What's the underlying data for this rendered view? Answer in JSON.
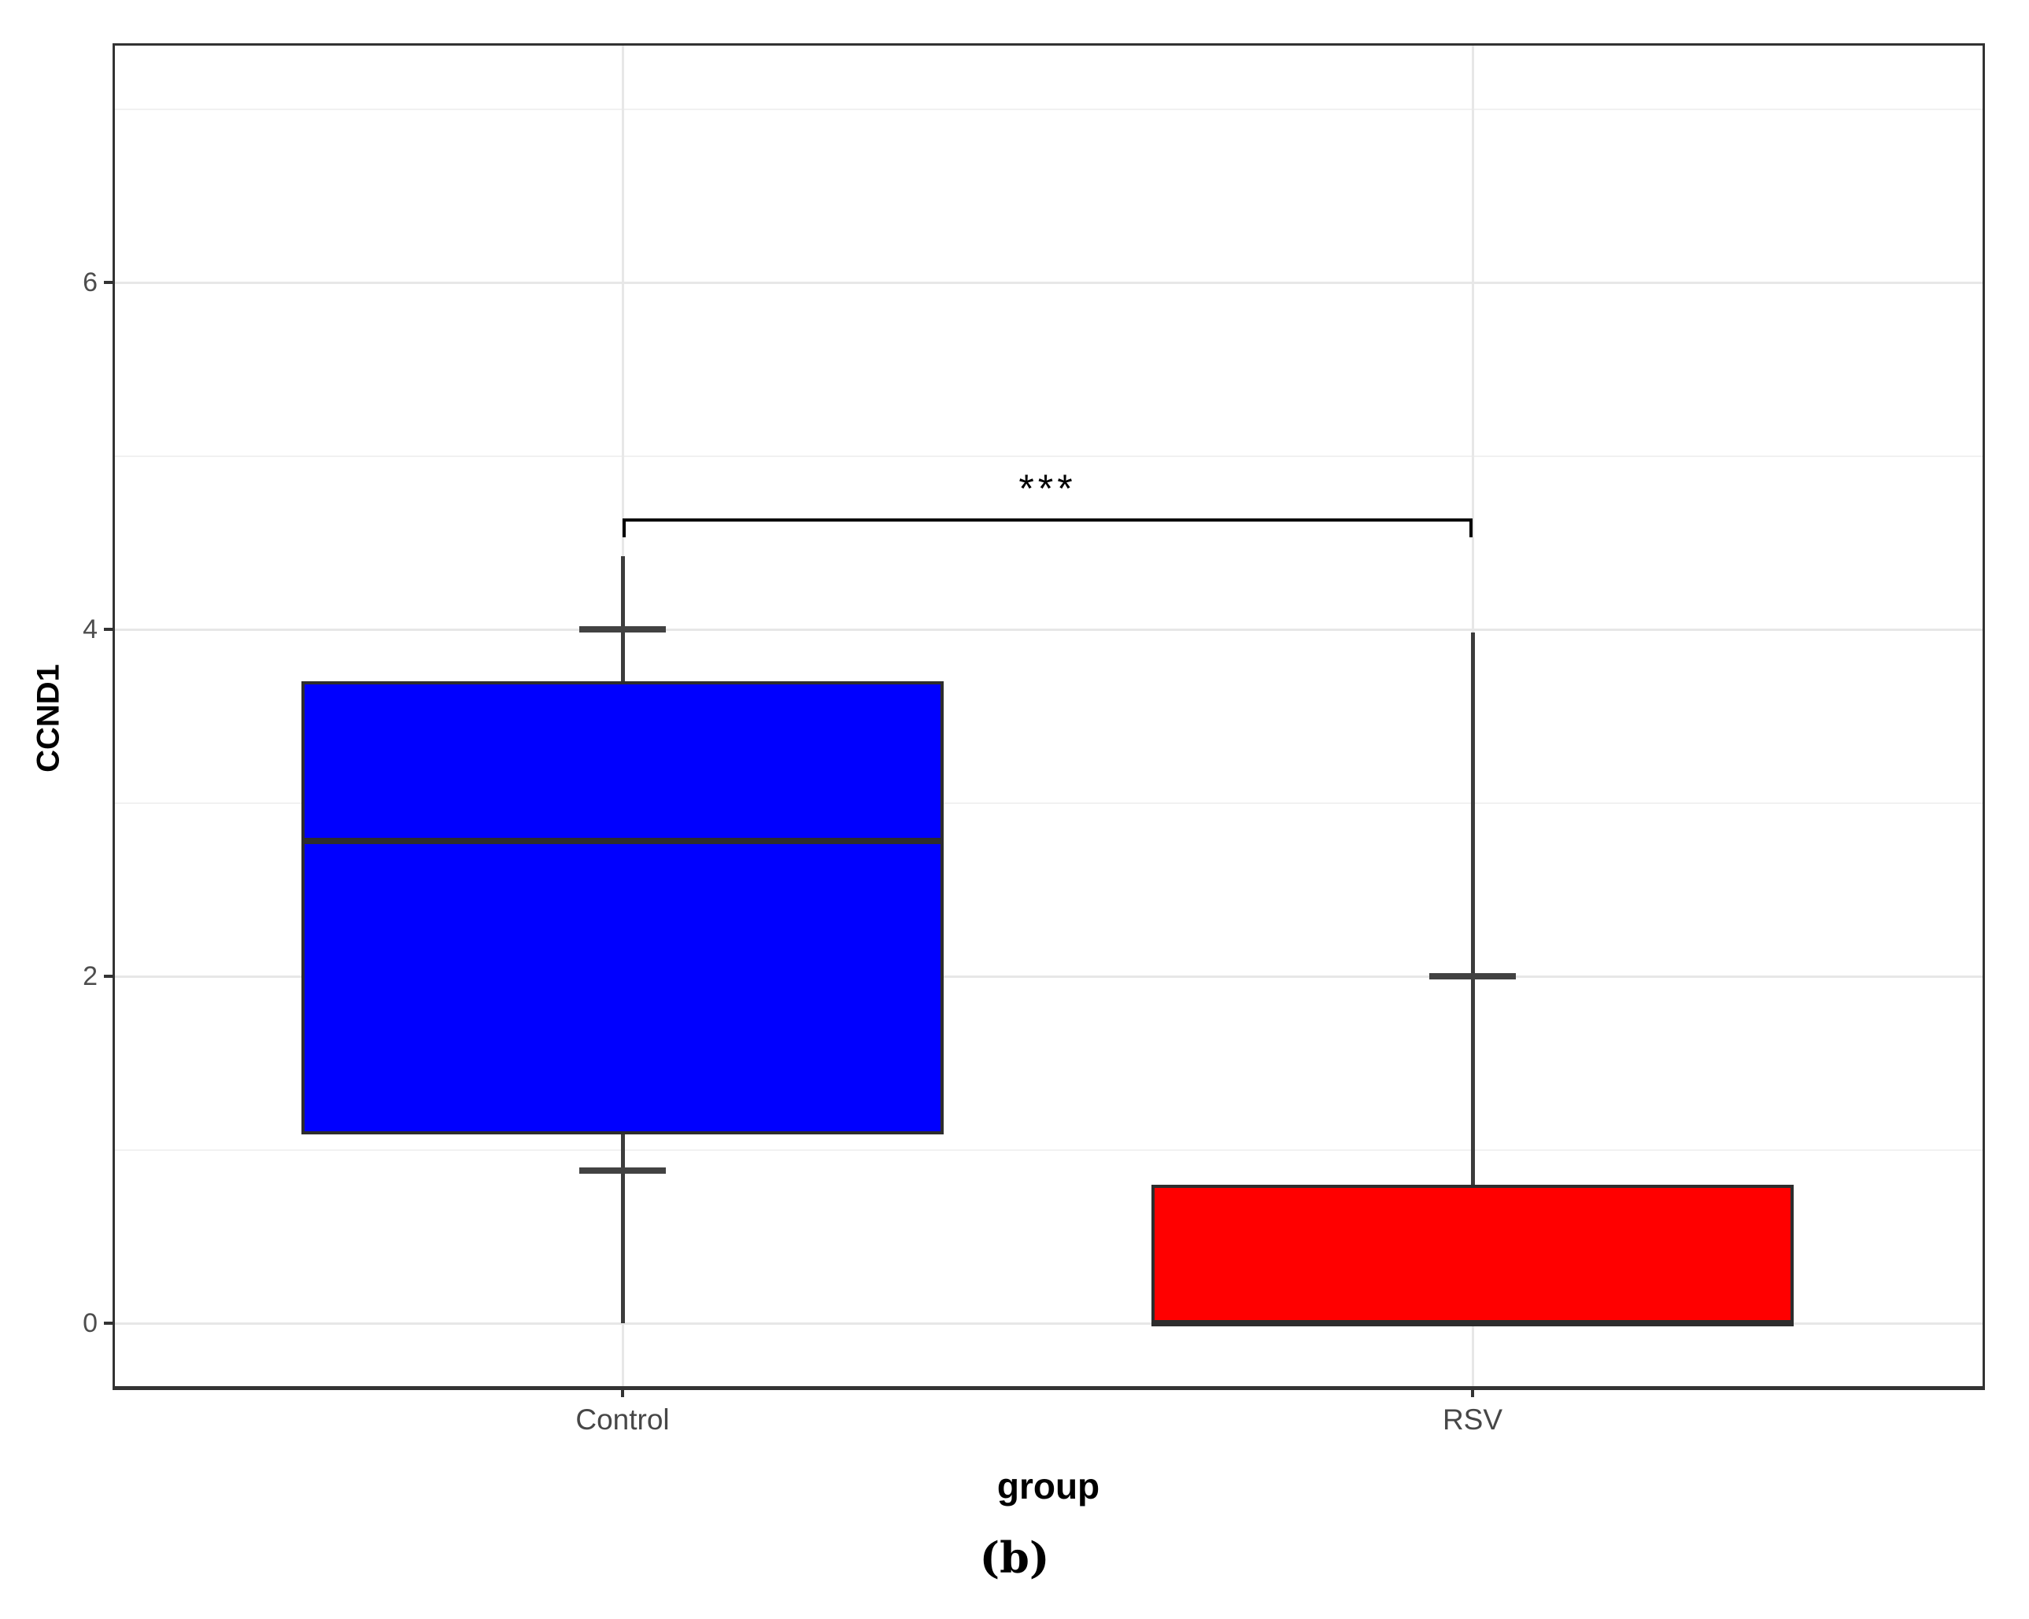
{
  "figure": {
    "caption": "(b)"
  },
  "chart_data": {
    "type": "boxplot",
    "title": "",
    "xlabel": "group",
    "ylabel": "CCND1",
    "categories": [
      "Control",
      "RSV"
    ],
    "yticks": [
      0,
      2,
      4,
      6
    ],
    "minor_yticks": [
      1,
      3,
      5,
      7
    ],
    "ylim": [
      -0.35,
      7.37
    ],
    "grid": "horizontal major+minor, vertical major at category centers",
    "legend": "none",
    "series": [
      {
        "name": "Control",
        "color": "#0000FF",
        "whisker_low": 0.0,
        "cap_low": 0.88,
        "q1": 1.09,
        "median": 2.78,
        "q3": 3.7,
        "cap_high": 4.0,
        "whisker_high": 4.42
      },
      {
        "name": "RSV",
        "color": "#FF0000",
        "whisker_low": 0.0,
        "cap_low": null,
        "q1": 0.0,
        "median": 0.0,
        "q3": 0.8,
        "cap_high": 2.0,
        "whisker_high": 3.98
      }
    ],
    "significance": {
      "between": [
        "Control",
        "RSV"
      ],
      "label": "***",
      "bar_y": 4.64,
      "tick_drop": 0.11
    }
  },
  "style": {
    "control_fill": "#0000FF",
    "rsv_fill": "#FF0000",
    "box_border": "#2d2d2d",
    "whisker": "#3c3c3c",
    "grid_major": "#e7e7e7",
    "grid_minor": "#f1f1f1",
    "panel_border": "#333333",
    "axis_text": "#4d4d4d",
    "bracket": "#000000"
  }
}
